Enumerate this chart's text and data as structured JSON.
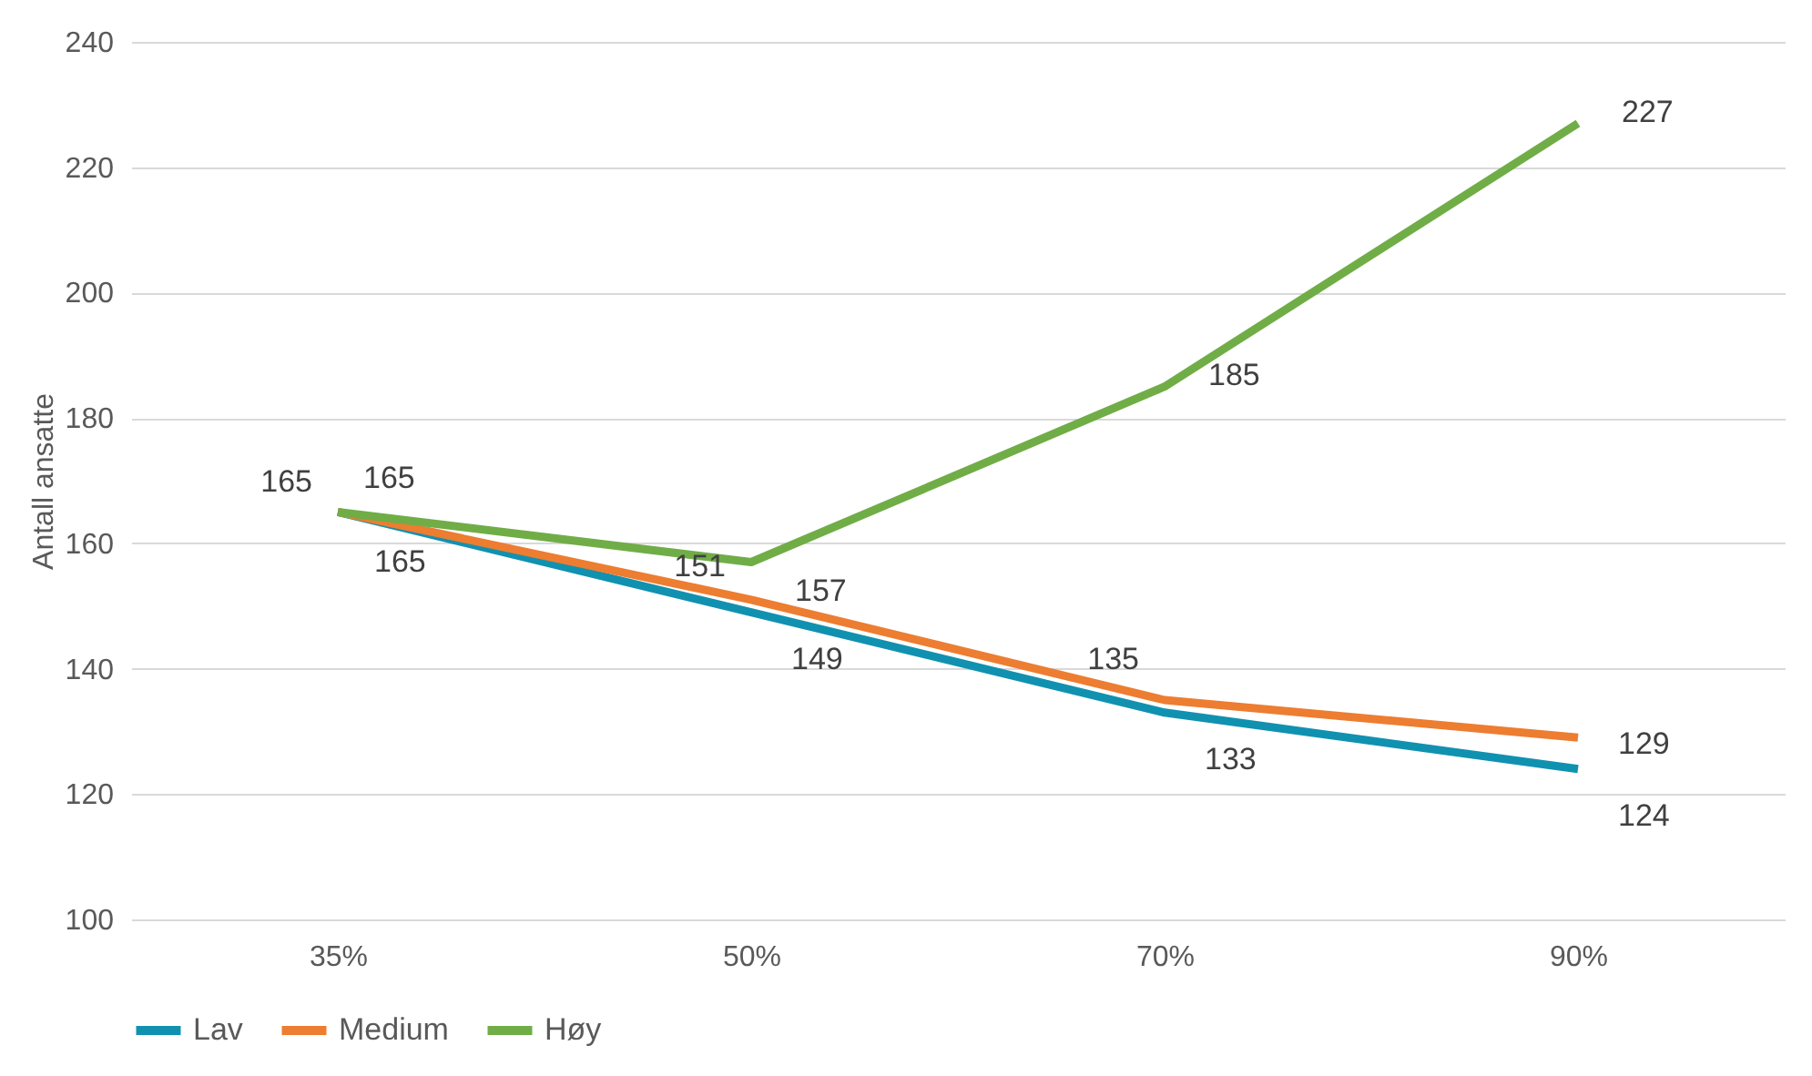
{
  "chart_data": {
    "type": "line",
    "ylabel": "Antall ansatte",
    "categories": [
      "35%",
      "50%",
      "70%",
      "90%"
    ],
    "series": [
      {
        "name": "Lav",
        "color": "#1191b0",
        "values": [
          165,
          149,
          133,
          124
        ]
      },
      {
        "name": "Medium",
        "color": "#ed7d31",
        "values": [
          165,
          151,
          135,
          129
        ]
      },
      {
        "name": "Høy",
        "color": "#70ad47",
        "values": [
          165,
          157,
          185,
          227
        ]
      }
    ],
    "ylim": [
      100,
      240
    ],
    "yticks": [
      100,
      120,
      140,
      160,
      180,
      200,
      220,
      240
    ],
    "grid": "y",
    "legend": "bottom",
    "data_labels": true,
    "marker": "none",
    "line_style": "solid"
  }
}
